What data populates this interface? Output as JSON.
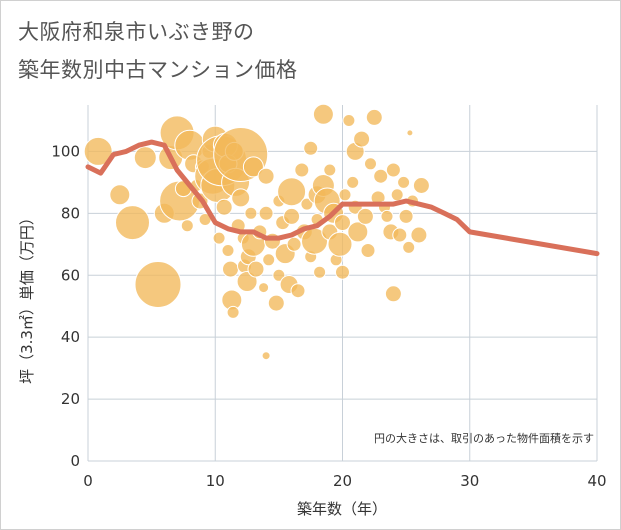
{
  "title_line1": "大阪府和泉市いぶき野の",
  "title_line2": "築年数別中古マンション価格",
  "colors": {
    "bubble_fill": "#f2b85a",
    "bubble_stroke": "#ffffff",
    "line": "#d9705a",
    "grid": "#c8d0d8",
    "axis_text": "#333333"
  },
  "chart_data": {
    "type": "scatter",
    "xlabel": "築年数（年）",
    "ylabel": "坪（3.3㎡）単価（万円）",
    "xlim": [
      0,
      40
    ],
    "ylim": [
      0,
      115
    ],
    "x_ticks": [
      "0",
      "10",
      "20",
      "30",
      "40"
    ],
    "y_ticks": [
      "0",
      "20",
      "40",
      "60",
      "80",
      "100"
    ],
    "grid": true,
    "note": "円の大きさは、取引のあった物件面積を示す",
    "bubbles": [
      {
        "x": 0.8,
        "y": 100,
        "r": 14
      },
      {
        "x": 2.5,
        "y": 86,
        "r": 10
      },
      {
        "x": 3.5,
        "y": 77,
        "r": 17
      },
      {
        "x": 4.5,
        "y": 98,
        "r": 11
      },
      {
        "x": 5.5,
        "y": 57,
        "r": 23
      },
      {
        "x": 6,
        "y": 80,
        "r": 10
      },
      {
        "x": 6.5,
        "y": 98,
        "r": 12
      },
      {
        "x": 7,
        "y": 106,
        "r": 17
      },
      {
        "x": 7.2,
        "y": 84,
        "r": 20
      },
      {
        "x": 7.5,
        "y": 88,
        "r": 8
      },
      {
        "x": 7.8,
        "y": 76,
        "r": 6
      },
      {
        "x": 8,
        "y": 102,
        "r": 15
      },
      {
        "x": 8.3,
        "y": 96,
        "r": 9
      },
      {
        "x": 8.5,
        "y": 89,
        "r": 6
      },
      {
        "x": 8.8,
        "y": 84,
        "r": 8
      },
      {
        "x": 9,
        "y": 95,
        "r": 7
      },
      {
        "x": 9.2,
        "y": 78,
        "r": 6
      },
      {
        "x": 9.5,
        "y": 100,
        "r": 7
      },
      {
        "x": 9.8,
        "y": 92,
        "r": 18
      },
      {
        "x": 10,
        "y": 104,
        "r": 13
      },
      {
        "x": 10.2,
        "y": 89,
        "r": 17
      },
      {
        "x": 10.3,
        "y": 72,
        "r": 6
      },
      {
        "x": 10.5,
        "y": 97,
        "r": 25
      },
      {
        "x": 10.7,
        "y": 82,
        "r": 8
      },
      {
        "x": 10.8,
        "y": 102,
        "r": 12
      },
      {
        "x": 11,
        "y": 96,
        "r": 9
      },
      {
        "x": 11,
        "y": 68,
        "r": 6
      },
      {
        "x": 11.2,
        "y": 62,
        "r": 8
      },
      {
        "x": 11.3,
        "y": 52,
        "r": 10
      },
      {
        "x": 11.4,
        "y": 48,
        "r": 6
      },
      {
        "x": 11.5,
        "y": 100,
        "r": 9
      },
      {
        "x": 11.6,
        "y": 90,
        "r": 14
      },
      {
        "x": 11.8,
        "y": 76,
        "r": 7
      },
      {
        "x": 12,
        "y": 99,
        "r": 27
      },
      {
        "x": 12,
        "y": 85,
        "r": 9
      },
      {
        "x": 12.2,
        "y": 72,
        "r": 6
      },
      {
        "x": 12.3,
        "y": 63,
        "r": 7
      },
      {
        "x": 12.5,
        "y": 58,
        "r": 10
      },
      {
        "x": 12.6,
        "y": 66,
        "r": 8
      },
      {
        "x": 12.8,
        "y": 80,
        "r": 6
      },
      {
        "x": 13,
        "y": 95,
        "r": 10
      },
      {
        "x": 13,
        "y": 70,
        "r": 12
      },
      {
        "x": 13.2,
        "y": 62,
        "r": 8
      },
      {
        "x": 13.5,
        "y": 74,
        "r": 7
      },
      {
        "x": 13.8,
        "y": 56,
        "r": 5
      },
      {
        "x": 14,
        "y": 92,
        "r": 8
      },
      {
        "x": 14,
        "y": 80,
        "r": 7
      },
      {
        "x": 14,
        "y": 34,
        "r": 4
      },
      {
        "x": 14.2,
        "y": 65,
        "r": 6
      },
      {
        "x": 14.5,
        "y": 71,
        "r": 8
      },
      {
        "x": 14.8,
        "y": 51,
        "r": 8
      },
      {
        "x": 15,
        "y": 84,
        "r": 6
      },
      {
        "x": 15,
        "y": 60,
        "r": 6
      },
      {
        "x": 15.3,
        "y": 77,
        "r": 7
      },
      {
        "x": 15.5,
        "y": 67,
        "r": 10
      },
      {
        "x": 15.8,
        "y": 57,
        "r": 9
      },
      {
        "x": 16,
        "y": 87,
        "r": 14
      },
      {
        "x": 16,
        "y": 79,
        "r": 8
      },
      {
        "x": 16.2,
        "y": 70,
        "r": 7
      },
      {
        "x": 16.5,
        "y": 55,
        "r": 7
      },
      {
        "x": 16.8,
        "y": 94,
        "r": 7
      },
      {
        "x": 17,
        "y": 74,
        "r": 8
      },
      {
        "x": 17.2,
        "y": 83,
        "r": 6
      },
      {
        "x": 17.5,
        "y": 66,
        "r": 6
      },
      {
        "x": 17.5,
        "y": 101,
        "r": 7
      },
      {
        "x": 17.8,
        "y": 71,
        "r": 13
      },
      {
        "x": 18,
        "y": 86,
        "r": 9
      },
      {
        "x": 18,
        "y": 78,
        "r": 6
      },
      {
        "x": 18.2,
        "y": 61,
        "r": 6
      },
      {
        "x": 18.5,
        "y": 89,
        "r": 11
      },
      {
        "x": 18.5,
        "y": 112,
        "r": 10
      },
      {
        "x": 18.8,
        "y": 84,
        "r": 13
      },
      {
        "x": 19,
        "y": 94,
        "r": 6
      },
      {
        "x": 19,
        "y": 74,
        "r": 8
      },
      {
        "x": 19.3,
        "y": 80,
        "r": 10
      },
      {
        "x": 19.5,
        "y": 65,
        "r": 6
      },
      {
        "x": 19.8,
        "y": 70,
        "r": 12
      },
      {
        "x": 20,
        "y": 61,
        "r": 7
      },
      {
        "x": 20,
        "y": 77,
        "r": 8
      },
      {
        "x": 20.2,
        "y": 86,
        "r": 6
      },
      {
        "x": 20.5,
        "y": 110,
        "r": 6
      },
      {
        "x": 20.8,
        "y": 90,
        "r": 6
      },
      {
        "x": 21,
        "y": 100,
        "r": 9
      },
      {
        "x": 21,
        "y": 82,
        "r": 7
      },
      {
        "x": 21.2,
        "y": 74,
        "r": 10
      },
      {
        "x": 21.5,
        "y": 104,
        "r": 8
      },
      {
        "x": 21.8,
        "y": 79,
        "r": 8
      },
      {
        "x": 22,
        "y": 68,
        "r": 7
      },
      {
        "x": 22.2,
        "y": 96,
        "r": 6
      },
      {
        "x": 22.5,
        "y": 111,
        "r": 8
      },
      {
        "x": 22.8,
        "y": 85,
        "r": 7
      },
      {
        "x": 23,
        "y": 92,
        "r": 7
      },
      {
        "x": 23.3,
        "y": 82,
        "r": 6
      },
      {
        "x": 23.5,
        "y": 79,
        "r": 6
      },
      {
        "x": 23.8,
        "y": 74,
        "r": 8
      },
      {
        "x": 24,
        "y": 94,
        "r": 7
      },
      {
        "x": 24,
        "y": 54,
        "r": 8
      },
      {
        "x": 24.3,
        "y": 86,
        "r": 6
      },
      {
        "x": 24.5,
        "y": 73,
        "r": 7
      },
      {
        "x": 24.8,
        "y": 90,
        "r": 6
      },
      {
        "x": 25,
        "y": 79,
        "r": 7
      },
      {
        "x": 25.2,
        "y": 69,
        "r": 6
      },
      {
        "x": 25.3,
        "y": 106,
        "r": 3
      },
      {
        "x": 25.5,
        "y": 84,
        "r": 6
      },
      {
        "x": 26,
        "y": 73,
        "r": 8
      },
      {
        "x": 26.2,
        "y": 89,
        "r": 8
      }
    ],
    "series": [
      {
        "type": "line",
        "x": [
          0,
          1,
          2,
          3,
          4,
          5,
          6,
          7,
          8,
          9,
          10,
          11,
          12,
          13,
          14,
          15,
          16,
          17,
          18,
          19,
          20,
          21,
          22,
          23,
          24,
          25,
          26,
          27,
          28,
          29,
          30,
          40
        ],
        "values": [
          95,
          93,
          99,
          100,
          102,
          103,
          102,
          94,
          89,
          84,
          77,
          75,
          74,
          74,
          72,
          72,
          73,
          75,
          76,
          79,
          83,
          83,
          83,
          83,
          83,
          84,
          83,
          82,
          80,
          78,
          74,
          67
        ]
      }
    ]
  }
}
